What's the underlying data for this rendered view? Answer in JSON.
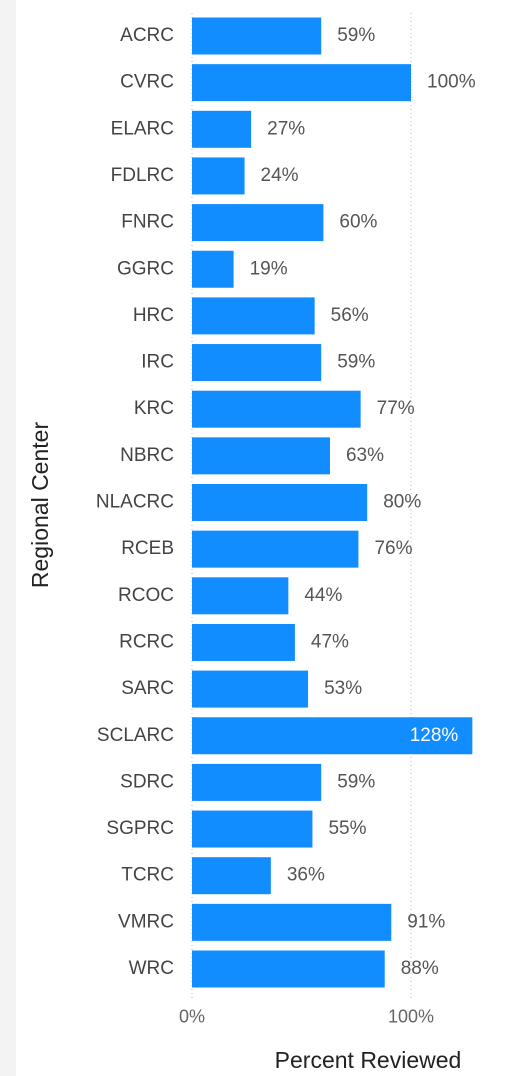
{
  "chart_data": {
    "type": "bar",
    "orientation": "horizontal",
    "x_label": "Percent Reviewed",
    "y_label": "Regional Center",
    "categories": [
      "ACRC",
      "CVRC",
      "ELARC",
      "FDLRC",
      "FNRC",
      "GGRC",
      "HRC",
      "IRC",
      "KRC",
      "NBRC",
      "NLACRC",
      "RCEB",
      "RCOC",
      "RCRC",
      "SARC",
      "SCLARC",
      "SDRC",
      "SGPRC",
      "TCRC",
      "VMRC",
      "WRC"
    ],
    "values": [
      59,
      100,
      27,
      24,
      60,
      19,
      56,
      59,
      77,
      63,
      80,
      76,
      44,
      47,
      53,
      128,
      59,
      55,
      36,
      91,
      88
    ],
    "value_labels": [
      "59%",
      "100%",
      "27%",
      "24%",
      "60%",
      "19%",
      "56%",
      "59%",
      "77%",
      "63%",
      "80%",
      "76%",
      "44%",
      "47%",
      "53%",
      "128%",
      "59%",
      "55%",
      "36%",
      "91%",
      "88%"
    ],
    "color": "#118dff",
    "xlim": [
      0,
      140
    ],
    "xticks": [
      {
        "value": 0,
        "label": "0%"
      },
      {
        "value": 100,
        "label": "100%"
      }
    ],
    "grid": true
  }
}
